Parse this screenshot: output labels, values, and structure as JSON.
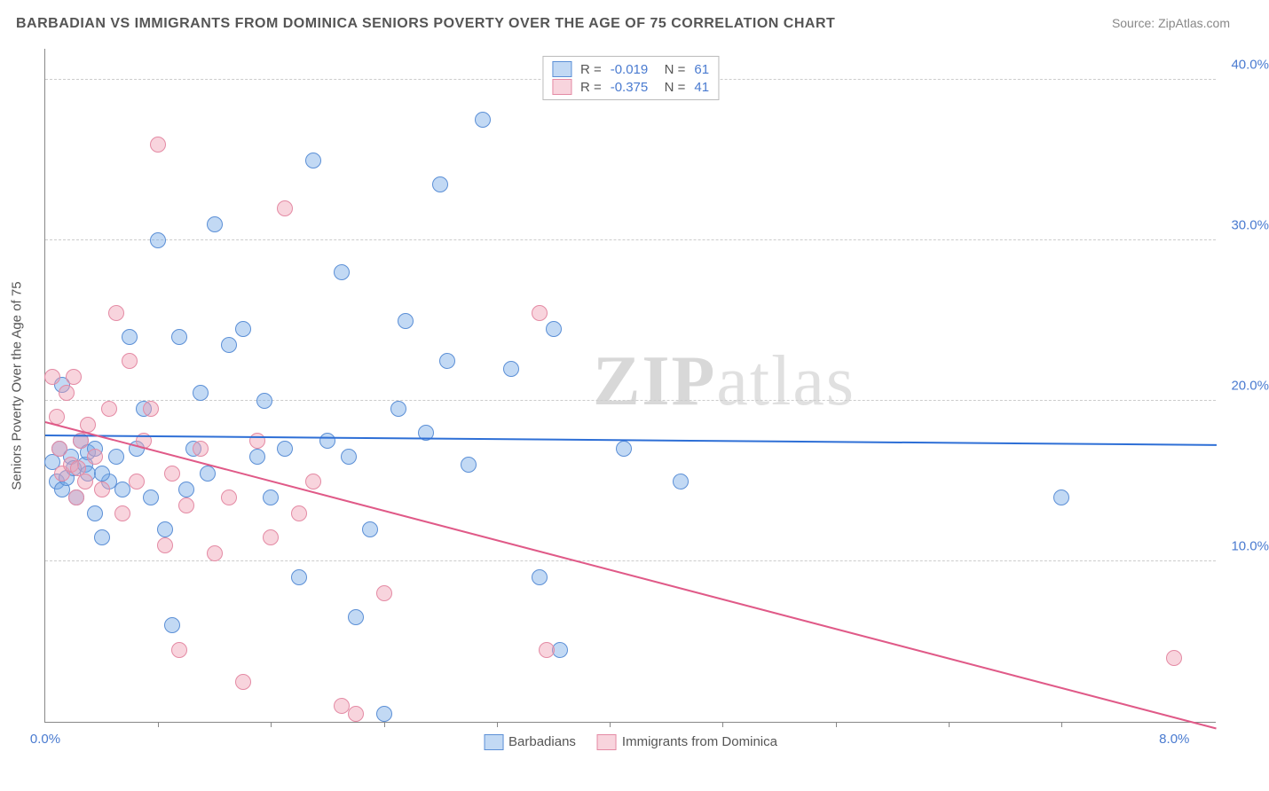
{
  "title": "BARBADIAN VS IMMIGRANTS FROM DOMINICA SENIORS POVERTY OVER THE AGE OF 75 CORRELATION CHART",
  "source": "Source: ZipAtlas.com",
  "watermark": {
    "bold": "ZIP",
    "rest": "atlas"
  },
  "chart": {
    "type": "scatter",
    "y_axis_label": "Seniors Poverty Over the Age of 75",
    "xlim": [
      0,
      8.3
    ],
    "ylim": [
      0,
      42
    ],
    "x_ticks_major": [
      0,
      8
    ],
    "x_ticks_minor": [
      0.8,
      1.6,
      2.4,
      3.2,
      4.0,
      4.8,
      5.6,
      6.4,
      7.2
    ],
    "y_ticks": [
      10,
      20,
      30,
      40
    ],
    "x_tick_labels": {
      "0": "0.0%",
      "8": "8.0%"
    },
    "y_tick_labels": {
      "10": "10.0%",
      "20": "20.0%",
      "30": "30.0%",
      "40": "40.0%"
    },
    "background_color": "#ffffff",
    "grid_color": "#cccccc",
    "axis_label_color": "#4a7bd0",
    "marker_radius": 9,
    "marker_stroke_width": 1.2,
    "trend_line_width": 2,
    "series": [
      {
        "name": "Barbadians",
        "fill": "rgba(120,170,230,0.45)",
        "stroke": "#5b8fd6",
        "trend_color": "#2e6fd6",
        "R": "-0.019",
        "N": "61",
        "trend": {
          "x1": 0,
          "y1": 17.8,
          "x2": 8.3,
          "y2": 17.2
        },
        "points": [
          [
            0.05,
            16.2
          ],
          [
            0.08,
            15.0
          ],
          [
            0.1,
            17.0
          ],
          [
            0.12,
            14.5
          ],
          [
            0.12,
            21.0
          ],
          [
            0.15,
            15.2
          ],
          [
            0.18,
            16.5
          ],
          [
            0.2,
            15.8
          ],
          [
            0.22,
            14.0
          ],
          [
            0.25,
            17.5
          ],
          [
            0.28,
            16.0
          ],
          [
            0.3,
            15.5
          ],
          [
            0.35,
            13.0
          ],
          [
            0.4,
            11.5
          ],
          [
            0.45,
            15.0
          ],
          [
            0.5,
            16.5
          ],
          [
            0.55,
            14.5
          ],
          [
            0.6,
            24.0
          ],
          [
            0.65,
            17.0
          ],
          [
            0.7,
            19.5
          ],
          [
            0.75,
            14.0
          ],
          [
            0.8,
            30.0
          ],
          [
            0.85,
            12.0
          ],
          [
            0.9,
            6.0
          ],
          [
            0.95,
            24.0
          ],
          [
            1.0,
            14.5
          ],
          [
            1.05,
            17.0
          ],
          [
            1.1,
            20.5
          ],
          [
            1.15,
            15.5
          ],
          [
            1.2,
            31.0
          ],
          [
            1.3,
            23.5
          ],
          [
            1.4,
            24.5
          ],
          [
            1.5,
            16.5
          ],
          [
            1.55,
            20.0
          ],
          [
            1.6,
            14.0
          ],
          [
            1.7,
            17.0
          ],
          [
            1.8,
            9.0
          ],
          [
            1.9,
            35.0
          ],
          [
            2.0,
            17.5
          ],
          [
            2.1,
            28.0
          ],
          [
            2.15,
            16.5
          ],
          [
            2.2,
            6.5
          ],
          [
            2.3,
            12.0
          ],
          [
            2.4,
            0.5
          ],
          [
            2.5,
            19.5
          ],
          [
            2.55,
            25.0
          ],
          [
            2.7,
            18.0
          ],
          [
            2.8,
            33.5
          ],
          [
            2.85,
            22.5
          ],
          [
            3.0,
            16.0
          ],
          [
            3.1,
            37.5
          ],
          [
            3.3,
            22.0
          ],
          [
            3.5,
            9.0
          ],
          [
            3.6,
            24.5
          ],
          [
            3.65,
            4.5
          ],
          [
            4.1,
            17.0
          ],
          [
            4.5,
            15.0
          ],
          [
            7.2,
            14.0
          ],
          [
            0.3,
            16.8
          ],
          [
            0.35,
            17.0
          ],
          [
            0.4,
            15.5
          ]
        ]
      },
      {
        "name": "Immigrants from Dominica",
        "fill": "rgba(240,160,180,0.45)",
        "stroke": "#e48aa4",
        "trend_color": "#e05a88",
        "R": "-0.375",
        "N": "41",
        "trend": {
          "x1": 0,
          "y1": 18.6,
          "x2": 8.3,
          "y2": -0.5
        },
        "points": [
          [
            0.05,
            21.5
          ],
          [
            0.08,
            19.0
          ],
          [
            0.1,
            17.0
          ],
          [
            0.12,
            15.5
          ],
          [
            0.15,
            20.5
          ],
          [
            0.18,
            16.0
          ],
          [
            0.2,
            21.5
          ],
          [
            0.22,
            14.0
          ],
          [
            0.25,
            17.5
          ],
          [
            0.28,
            15.0
          ],
          [
            0.3,
            18.5
          ],
          [
            0.35,
            16.5
          ],
          [
            0.4,
            14.5
          ],
          [
            0.45,
            19.5
          ],
          [
            0.5,
            25.5
          ],
          [
            0.55,
            13.0
          ],
          [
            0.6,
            22.5
          ],
          [
            0.65,
            15.0
          ],
          [
            0.7,
            17.5
          ],
          [
            0.75,
            19.5
          ],
          [
            0.8,
            36.0
          ],
          [
            0.85,
            11.0
          ],
          [
            0.9,
            15.5
          ],
          [
            0.95,
            4.5
          ],
          [
            1.0,
            13.5
          ],
          [
            1.1,
            17.0
          ],
          [
            1.2,
            10.5
          ],
          [
            1.3,
            14.0
          ],
          [
            1.4,
            2.5
          ],
          [
            1.5,
            17.5
          ],
          [
            1.6,
            11.5
          ],
          [
            1.7,
            32.0
          ],
          [
            1.8,
            13.0
          ],
          [
            1.9,
            15.0
          ],
          [
            2.1,
            1.0
          ],
          [
            2.2,
            0.5
          ],
          [
            2.4,
            8.0
          ],
          [
            3.5,
            25.5
          ],
          [
            3.55,
            4.5
          ],
          [
            8.0,
            4.0
          ],
          [
            0.23,
            15.8
          ]
        ]
      }
    ],
    "legend_bottom": [
      {
        "label": "Barbadians",
        "fill": "rgba(120,170,230,0.45)",
        "stroke": "#5b8fd6"
      },
      {
        "label": "Immigrants from Dominica",
        "fill": "rgba(240,160,180,0.45)",
        "stroke": "#e48aa4"
      }
    ]
  }
}
